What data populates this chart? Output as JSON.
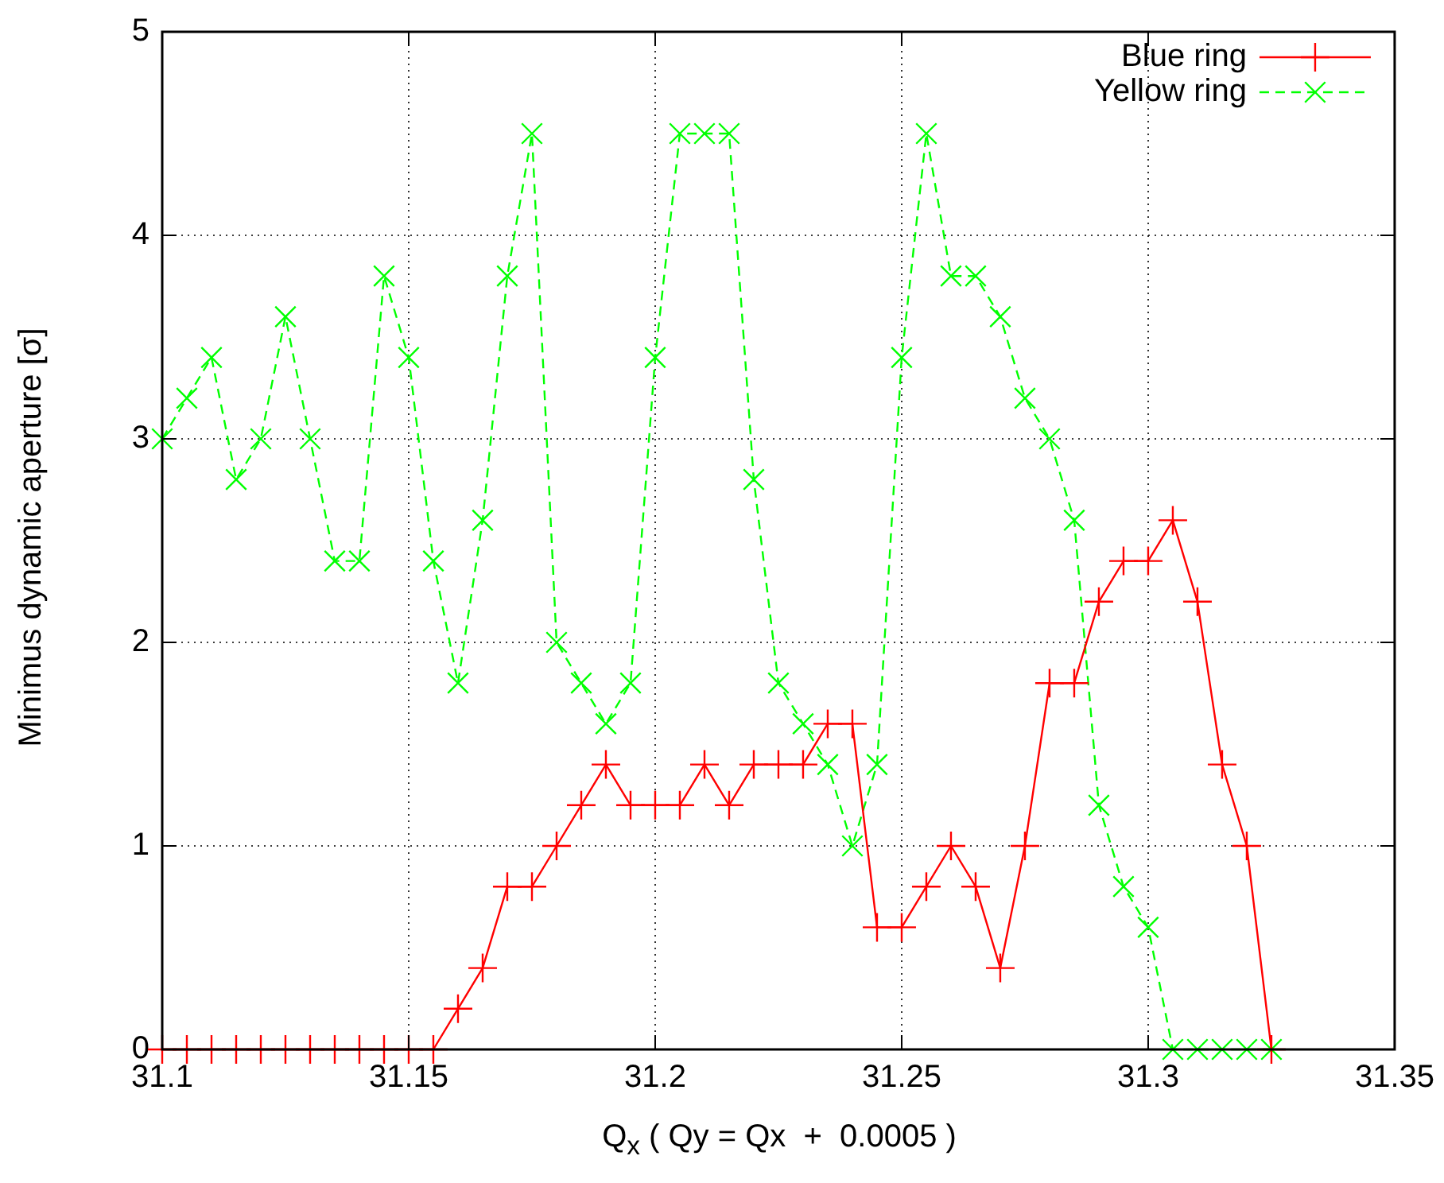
{
  "chart_data": {
    "type": "line",
    "xlabel": "Q$_{x}$ ( Qy = Qx  +  0.0005 )",
    "ylabel": "Minimus dynamic aperture [σ]",
    "x": [
      31.1,
      31.105,
      31.11,
      31.115,
      31.12,
      31.125,
      31.13,
      31.135,
      31.14,
      31.145,
      31.15,
      31.155,
      31.16,
      31.165,
      31.17,
      31.175,
      31.18,
      31.185,
      31.19,
      31.195,
      31.2,
      31.205,
      31.21,
      31.215,
      31.22,
      31.225,
      31.23,
      31.235,
      31.24,
      31.245,
      31.25,
      31.255,
      31.26,
      31.265,
      31.27,
      31.275,
      31.28,
      31.285,
      31.29,
      31.295,
      31.3,
      31.305,
      31.31,
      31.315,
      31.32,
      31.325
    ],
    "series": [
      {
        "name": "Blue ring",
        "color": "#ff0000",
        "marker": "cross",
        "line_style": "solid",
        "values": [
          0,
          0,
          0,
          0,
          0,
          0,
          0,
          0,
          0,
          0,
          0,
          0,
          0.2,
          0.4,
          0.8,
          0.8,
          1.0,
          1.2,
          1.4,
          1.2,
          1.2,
          1.2,
          1.4,
          1.2,
          1.4,
          1.4,
          1.4,
          1.6,
          1.6,
          0.6,
          0.6,
          0.8,
          1.0,
          0.8,
          0.4,
          1.0,
          1.8,
          1.8,
          2.2,
          2.4,
          2.4,
          2.6,
          2.2,
          1.4,
          1.0,
          0
        ]
      },
      {
        "name": "Yellow ring",
        "color": "#00ff00",
        "marker": "x",
        "line_style": "dashed",
        "values": [
          3.0,
          3.2,
          3.4,
          2.8,
          3.0,
          3.6,
          3.0,
          2.4,
          2.4,
          3.8,
          3.4,
          2.4,
          1.8,
          2.6,
          3.8,
          4.5,
          2.0,
          1.8,
          1.6,
          1.8,
          3.4,
          4.5,
          4.5,
          4.5,
          2.8,
          1.8,
          1.6,
          1.4,
          1.0,
          1.4,
          3.4,
          4.5,
          3.8,
          3.8,
          3.6,
          3.2,
          3.0,
          2.6,
          1.2,
          0.8,
          0.6,
          0,
          0,
          0,
          0,
          0
        ]
      }
    ],
    "xlim": [
      31.1,
      31.35
    ],
    "xticks": [
      31.1,
      31.15,
      31.2,
      31.25,
      31.3,
      31.35
    ],
    "ylim": [
      0,
      5
    ],
    "yticks": [
      0,
      1,
      2,
      3,
      4,
      5
    ],
    "grid": true,
    "legend": "top right"
  }
}
